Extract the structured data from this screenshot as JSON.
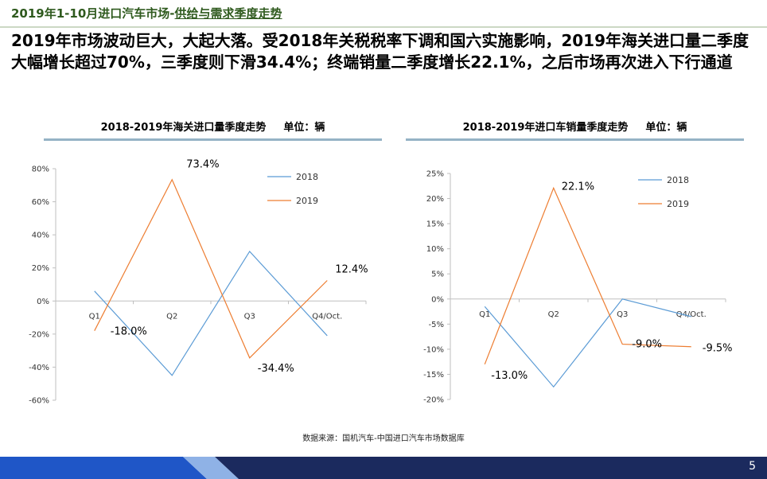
{
  "header": {
    "title_part1": "2019年1-10月进口汽车市场-",
    "title_part2": "供给与需求季度走势"
  },
  "headline": "2019年市场波动巨大，大起大落。受2018年关税税率下调和国六实施影响，2019年海关进口量二季度大幅增长超过70%，三季度则下滑34.4%；终端销量二季度增长22.1%，之后市场再次进入下行通道",
  "colors": {
    "series_2018": "#5b9bd5",
    "series_2019": "#ed7d31",
    "title_rule": "#95b3c5",
    "header_text": "#2f5a1e",
    "footer_blue": "#1f56c7",
    "footer_navy": "#1b2a5e"
  },
  "chart_data": [
    {
      "type": "line",
      "title": "2018-2019年海关进口量季度走势",
      "unit": "单位：辆",
      "categories": [
        "Q1",
        "Q2",
        "Q3",
        "Q4/Oct."
      ],
      "ylim": [
        -60,
        80
      ],
      "yticks": [
        80,
        60,
        40,
        20,
        0,
        -20,
        -40,
        -60
      ],
      "ytick_labels": [
        "80%",
        "60%",
        "40%",
        "20%",
        "0%",
        "-20%",
        "-40%",
        "-60%"
      ],
      "series": [
        {
          "name": "2018",
          "values": [
            6,
            -45,
            30,
            -21
          ],
          "labels": [
            "",
            "",
            "",
            ""
          ]
        },
        {
          "name": "2019",
          "values": [
            -18.0,
            73.4,
            -34.4,
            12.4
          ],
          "labels": [
            "-18.0%",
            "73.4%",
            "-34.4%",
            "12.4%"
          ]
        }
      ]
    },
    {
      "type": "line",
      "title": "2018-2019年进口车销量季度走势",
      "unit": "单位：辆",
      "categories": [
        "Q1",
        "Q2",
        "Q3",
        "Q4/Oct."
      ],
      "ylim": [
        -20,
        25
      ],
      "yticks": [
        25,
        20,
        15,
        10,
        5,
        0,
        -5,
        -10,
        -15,
        -20
      ],
      "ytick_labels": [
        "25%",
        "20%",
        "15%",
        "10%",
        "5%",
        "0%",
        "-5%",
        "-10%",
        "-15%",
        "-20%"
      ],
      "series": [
        {
          "name": "2018",
          "values": [
            -1.5,
            -17.5,
            0,
            -3.5
          ],
          "labels": [
            "",
            "",
            "",
            ""
          ]
        },
        {
          "name": "2019",
          "values": [
            -13.0,
            22.1,
            -9.0,
            -9.5
          ],
          "labels": [
            "-13.0%",
            "22.1%",
            "-9.0%",
            "-9.5%"
          ]
        }
      ]
    }
  ],
  "source": "数据来源：国机汽车-中国进口汽车市场数据库",
  "page_number": "5"
}
